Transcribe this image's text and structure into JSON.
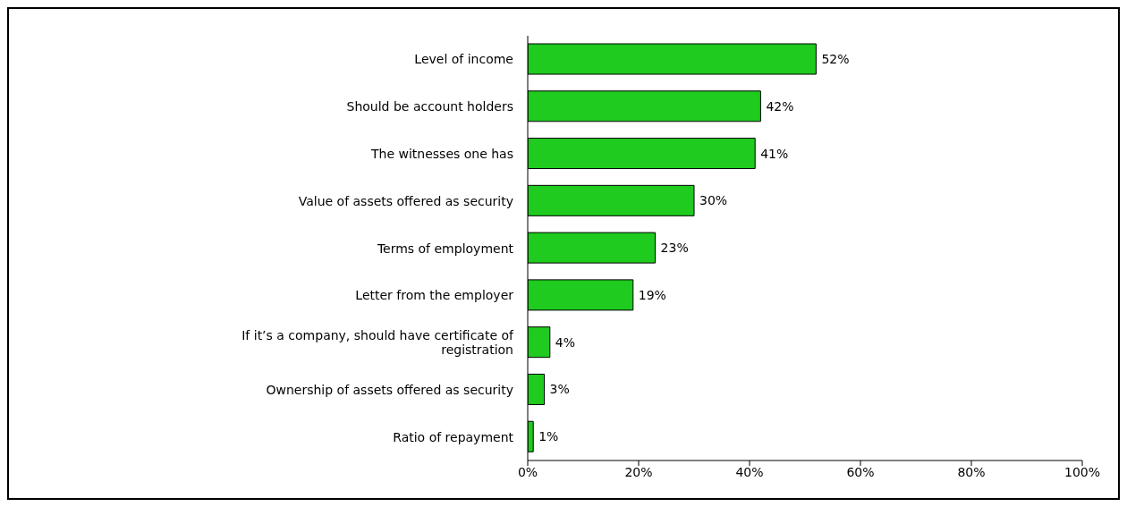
{
  "chart_data": {
    "type": "bar",
    "orientation": "horizontal",
    "categories": [
      "Level of income",
      "Should be account holders",
      "The witnesses one has",
      "Value of assets offered as security",
      "Terms of employment",
      "Letter from the employer",
      "If it’s a company, should have certificate of registration",
      "Ownership of assets offered as security",
      "Ratio of repayment"
    ],
    "values": [
      52,
      42,
      41,
      30,
      23,
      19,
      4,
      3,
      1
    ],
    "value_labels": [
      "52%",
      "42%",
      "41%",
      "30%",
      "23%",
      "19%",
      "4%",
      "3%",
      "1%"
    ],
    "color": "#1ecb1e",
    "xlim": [
      0,
      100
    ],
    "xticks": [
      {
        "value": 0,
        "label": "0%"
      },
      {
        "value": 20,
        "label": "20%"
      },
      {
        "value": 40,
        "label": "40%"
      },
      {
        "value": 60,
        "label": "60%"
      },
      {
        "value": 80,
        "label": "80%"
      },
      {
        "value": 100,
        "label": "100%"
      }
    ],
    "grid": false,
    "legend": false
  }
}
